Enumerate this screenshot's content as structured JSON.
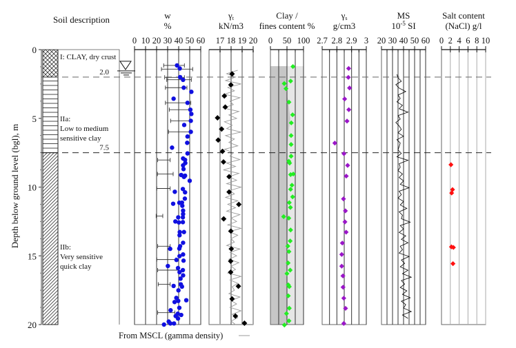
{
  "chart_data": {
    "type": "scatter",
    "y_axis": {
      "label": "Depth below ground level (bgl), m",
      "range": [
        0,
        20
      ],
      "ticks": [
        "0",
        "5",
        "10",
        "15",
        "20"
      ],
      "inverted": true
    },
    "soil_column": {
      "title": "Soil description",
      "layers": [
        {
          "top": 0,
          "bottom": 2.0,
          "pattern": "crosshatch",
          "label_lines": [
            "I: CLAY, dry crust"
          ]
        },
        {
          "top": 2.0,
          "bottom": 7.5,
          "pattern": "horizontal",
          "label_lines": [
            "IIa:",
            "Low to medium",
            "sensitive clay"
          ]
        },
        {
          "top": 7.5,
          "bottom": 20,
          "pattern": "diagonal",
          "label_lines": [
            "IIb:",
            "Very sensitive",
            "quick clay"
          ]
        }
      ],
      "boundaries": [
        {
          "depth": 2.0,
          "label": "2.0"
        },
        {
          "depth": 7.5,
          "label": "7.5"
        }
      ],
      "water_table_depth": 1.5
    },
    "panels": {
      "w": {
        "title_lines": [
          "w",
          "%"
        ],
        "range": [
          0,
          60
        ],
        "ticks": [
          "0",
          "10",
          "20",
          "30",
          "40",
          "50",
          "60"
        ],
        "color": "#1010e0",
        "points": [
          [
            38.5,
            1.15
          ],
          [
            41,
            1.37
          ],
          [
            41.3,
            2.0
          ],
          [
            44,
            2.2
          ],
          [
            44.6,
            2.77
          ],
          [
            51.5,
            3.07
          ],
          [
            35.4,
            3.57
          ],
          [
            48,
            3.87
          ],
          [
            50.6,
            4.37
          ],
          [
            51.5,
            4.68
          ],
          [
            51,
            5.18
          ],
          [
            45,
            5.48
          ],
          [
            51,
            5.98
          ],
          [
            48,
            6.32
          ],
          [
            47.7,
            6.78
          ],
          [
            34,
            7.13
          ],
          [
            48,
            7.55
          ],
          [
            44,
            7.92
          ],
          [
            45.8,
            8.02
          ],
          [
            46,
            8.25
          ],
          [
            44,
            8.42
          ],
          [
            44.4,
            8.69
          ],
          [
            42.3,
            9.12
          ],
          [
            45.8,
            9.17
          ],
          [
            44.8,
            9.26
          ],
          [
            50,
            9.54
          ],
          [
            43.8,
            10.14
          ],
          [
            36.5,
            10.34
          ],
          [
            45.8,
            10.38
          ],
          [
            45.6,
            10.84
          ],
          [
            35,
            11.21
          ],
          [
            40.6,
            11.14
          ],
          [
            43,
            11.13
          ],
          [
            43.3,
            11.36
          ],
          [
            44,
            11.71
          ],
          [
            44,
            11.96
          ],
          [
            39.6,
            12.2
          ],
          [
            43.8,
            12.2
          ],
          [
            37,
            12.5
          ],
          [
            43.8,
            12.55
          ],
          [
            40.2,
            12.57
          ],
          [
            41,
            13.27
          ],
          [
            44.8,
            13.27
          ],
          [
            40.8,
            13.5
          ],
          [
            44,
            14.05
          ],
          [
            32.3,
            14.49
          ],
          [
            40.6,
            14.47
          ],
          [
            41.3,
            14.3
          ],
          [
            44,
            14.9
          ],
          [
            40.8,
            15.02
          ],
          [
            44.4,
            15.35
          ],
          [
            38,
            15.3
          ],
          [
            30.2,
            15.74
          ],
          [
            39.4,
            15.89
          ],
          [
            43.8,
            16.04
          ],
          [
            40.8,
            16.19
          ],
          [
            44,
            16.42
          ],
          [
            41.7,
            16.66
          ],
          [
            41.9,
            17.07
          ],
          [
            35.4,
            17.19
          ],
          [
            43,
            17.24
          ],
          [
            39.8,
            17.51
          ],
          [
            37.9,
            18.06
          ],
          [
            46.9,
            18.23
          ],
          [
            39.6,
            18.28
          ],
          [
            36.3,
            18.36
          ],
          [
            40.6,
            18.78
          ],
          [
            32.7,
            18.96
          ],
          [
            39.2,
            19.21
          ],
          [
            42.3,
            19.3
          ],
          [
            37.3,
            19.38
          ],
          [
            39.4,
            19.56
          ],
          [
            31,
            19.78
          ],
          [
            32.5,
            19.92
          ],
          [
            26.7,
            20.0
          ],
          [
            35.8,
            19.92
          ]
        ],
        "ranges": [
          [
            26.4,
            45.2,
            1.15
          ],
          [
            24.4,
            52.7,
            1.42
          ],
          [
            27.3,
            45.2,
            2.02
          ],
          [
            29.2,
            51.5,
            2.19
          ],
          [
            28,
            47.5,
            2.77
          ],
          [
            28,
            51,
            3.87
          ],
          [
            31.5,
            50.6,
            4.37
          ],
          [
            32.7,
            51,
            5.18
          ],
          [
            30.8,
            51,
            5.98
          ],
          [
            21,
            32.3,
            8.03
          ],
          [
            20.8,
            35,
            9.05
          ],
          [
            20.2,
            32.3,
            10.1
          ],
          [
            19.6,
            25.6,
            12.1
          ],
          [
            21,
            32.3,
            14.3
          ],
          [
            20.2,
            37.5,
            15.27
          ],
          [
            21,
            39.6,
            16.04
          ],
          [
            21.5,
            32.3,
            17.07
          ],
          [
            21,
            36.5,
            19.13
          ]
        ]
      },
      "gamma_t": {
        "title_lines": [
          "γt",
          "kN/m3"
        ],
        "range": [
          17,
          20
        ],
        "ticks": [
          "17",
          "18",
          "19",
          "20"
        ],
        "color": "#000000",
        "points": [
          [
            18.09,
            1.77
          ],
          [
            17.98,
            2.56
          ],
          [
            17.39,
            3.37
          ],
          [
            17.47,
            4.18
          ],
          [
            16.77,
            4.96
          ],
          [
            17.14,
            5.78
          ],
          [
            16.83,
            6.58
          ],
          [
            17.22,
            7.4
          ],
          [
            17.31,
            8.17
          ],
          [
            17.82,
            9.24
          ],
          [
            17.82,
            10.36
          ],
          [
            18.7,
            11.26
          ],
          [
            17.33,
            12.31
          ],
          [
            17.98,
            13.2
          ],
          [
            18.02,
            14.49
          ],
          [
            17.96,
            15.39
          ],
          [
            17.96,
            16.19
          ],
          [
            18.66,
            17.21
          ],
          [
            18.09,
            18.13
          ],
          [
            18.39,
            19.38
          ],
          [
            19.21,
            19.9
          ]
        ],
        "mscl_trace": {
          "label": "From MSCL (gamma density)",
          "color": "#999999",
          "start_depth": 1.5,
          "step": 0.25,
          "values": [
            18.6,
            17.6,
            18.4,
            17.5,
            18.9,
            17.7,
            18.3,
            17.4,
            18.8,
            17.9,
            18.2,
            17.3,
            18.7,
            17.8,
            18.5,
            17.4,
            18.1,
            17.6,
            18.9,
            17.5,
            18.3,
            17.8,
            18.6,
            17.4,
            18.2,
            17.9,
            18.8,
            17.6,
            18.4,
            17.3,
            18.7,
            17.8,
            18.5,
            17.6,
            18.9,
            17.9,
            18.3,
            17.5,
            18.6,
            17.7,
            18.4,
            17.6,
            18.8,
            18.0,
            18.5,
            17.7,
            18.9,
            17.8,
            18.6,
            18.0,
            18.3,
            17.6,
            18.8,
            17.9,
            18.5,
            17.8,
            18.7,
            18.0,
            18.4,
            17.7,
            18.9,
            17.9,
            18.6,
            18.1,
            18.3,
            17.8,
            18.8,
            18.0,
            18.5,
            17.9,
            18.9,
            18.1,
            18.6,
            18.0,
            18.4
          ]
        }
      },
      "clay": {
        "title_lines": [
          "Clay /",
          "fines content %"
        ],
        "range": [
          0,
          100
        ],
        "ticks": [
          "0",
          "50",
          "100"
        ],
        "color": "#22ee22",
        "shading_top": 1.2,
        "dark_fill": "#c6c6c6",
        "light_fill": "#e6e6e6",
        "clay_fraction_boundary": [
          [
            50,
            1.2
          ],
          [
            48,
            3.0
          ],
          [
            55,
            4.0
          ],
          [
            60,
            5.0
          ],
          [
            55,
            6.0
          ],
          [
            50,
            7.5
          ],
          [
            50,
            10
          ],
          [
            53,
            12
          ],
          [
            50,
            14
          ],
          [
            50,
            20
          ]
        ],
        "points": [
          [
            68,
            1.23
          ],
          [
            61,
            2.29
          ],
          [
            41.7,
            2.47
          ],
          [
            47,
            2.84
          ],
          [
            56,
            3.82
          ],
          [
            67,
            4.74
          ],
          [
            63,
            5.33
          ],
          [
            62.5,
            6.25
          ],
          [
            62.5,
            6.9
          ],
          [
            62.5,
            7.75
          ],
          [
            55.6,
            8.12
          ],
          [
            58,
            8.25
          ],
          [
            69,
            9.05
          ],
          [
            61,
            9.09
          ],
          [
            65,
            9.86
          ],
          [
            61,
            10.16
          ],
          [
            67,
            10.71
          ],
          [
            57,
            11.13
          ],
          [
            60.4,
            11.48
          ],
          [
            40,
            12.15
          ],
          [
            55.6,
            12.26
          ],
          [
            61,
            13.12
          ],
          [
            59.7,
            13.92
          ],
          [
            52.7,
            14.29
          ],
          [
            56,
            14.69
          ],
          [
            53.5,
            15.52
          ],
          [
            59.7,
            16.04
          ],
          [
            50,
            16.29
          ],
          [
            54,
            17.11
          ],
          [
            57,
            17.24
          ],
          [
            54,
            17.91
          ],
          [
            57,
            18.81
          ],
          [
            48.6,
            19.2
          ],
          [
            56,
            19.73
          ],
          [
            42.3,
            20.03
          ]
        ]
      },
      "gamma_s": {
        "title_lines": [
          "γs",
          "g/cm3"
        ],
        "range": [
          2.7,
          3.0
        ],
        "ticks": [
          "2.7",
          "2.8",
          "2.9",
          "3"
        ],
        "color": "#9a16c8",
        "points": [
          [
            2.88,
            1.37
          ],
          [
            2.878,
            2.02
          ],
          [
            2.886,
            2.79
          ],
          [
            2.853,
            3.59
          ],
          [
            2.881,
            4.37
          ],
          [
            2.869,
            5.2
          ],
          [
            2.786,
            6.8
          ],
          [
            2.848,
            7.57
          ],
          [
            2.873,
            8.42
          ],
          [
            2.864,
            9.2
          ],
          [
            2.845,
            10.86
          ],
          [
            2.858,
            11.73
          ],
          [
            2.855,
            12.53
          ],
          [
            2.863,
            13.28
          ],
          [
            2.837,
            14.07
          ],
          [
            2.833,
            14.9
          ],
          [
            2.833,
            15.75
          ],
          [
            2.841,
            16.46
          ],
          [
            2.842,
            17.28
          ],
          [
            2.847,
            18.08
          ],
          [
            2.859,
            18.82
          ],
          [
            2.847,
            19.92
          ]
        ]
      },
      "ms": {
        "title_lines": [
          "MS",
          "10-5 SI"
        ],
        "range": [
          20,
          60
        ],
        "ticks": [
          "20",
          "30",
          "40",
          "50",
          "60"
        ],
        "color": "#000000",
        "start_depth": 1.8,
        "step": 0.25,
        "values": [
          34,
          35,
          38,
          33,
          36,
          42,
          35,
          37,
          34,
          39,
          36,
          44,
          35,
          37,
          33,
          36,
          38,
          35,
          40,
          34,
          37,
          36,
          35,
          38,
          34,
          44,
          36,
          37,
          35,
          39,
          36,
          40,
          37,
          45,
          36,
          38,
          35,
          40,
          37,
          43,
          36,
          39,
          38,
          46,
          37,
          40,
          36,
          42,
          38,
          44,
          37,
          39,
          36,
          45,
          38,
          41,
          37,
          44,
          39,
          47,
          38,
          41,
          37,
          43,
          39,
          46,
          38,
          42,
          40,
          47,
          39,
          44
        ]
      },
      "salt": {
        "title_lines": [
          "Salt content",
          "(NaCl) g/l"
        ],
        "range": [
          0,
          10
        ],
        "ticks": [
          "0",
          "2",
          "4",
          "6",
          "8",
          "10"
        ],
        "color": "#ff1010",
        "points": [
          [
            2.14,
            8.37
          ],
          [
            2.5,
            10.18
          ],
          [
            2.3,
            10.43
          ],
          [
            2.25,
            14.35
          ],
          [
            2.7,
            14.39
          ],
          [
            2.6,
            15.57
          ]
        ]
      }
    }
  }
}
